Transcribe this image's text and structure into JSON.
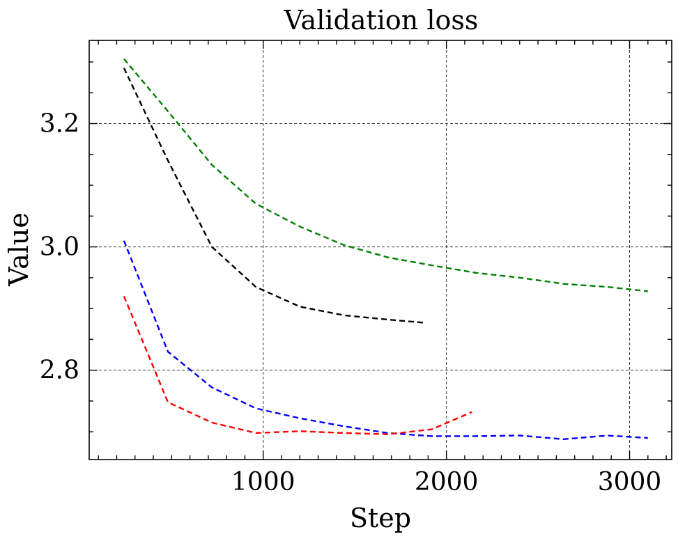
{
  "chart_data": {
    "type": "line",
    "title": "Validation loss",
    "xlabel": "Step",
    "ylabel": "Value",
    "xlim": [
      50,
      3230
    ],
    "ylim": [
      2.655,
      3.335
    ],
    "xticks": [
      1000,
      2000,
      3000
    ],
    "xtick_labels": [
      "1000",
      "2000",
      "3000"
    ],
    "yticks": [
      2.8,
      3.0,
      3.2
    ],
    "ytick_labels": [
      "2.8",
      "3.0",
      "3.2"
    ],
    "grid": true,
    "grid_style": "dashed",
    "series": [
      {
        "color": "#008000",
        "x": [
          240,
          480,
          720,
          960,
          1200,
          1440,
          1680,
          1920,
          2160,
          2400,
          2640,
          2880,
          3100
        ],
        "y": [
          3.305,
          3.22,
          3.133,
          3.07,
          3.033,
          3.003,
          2.983,
          2.97,
          2.958,
          2.95,
          2.94,
          2.935,
          2.928
        ]
      },
      {
        "color": "#000000",
        "x": [
          240,
          480,
          720,
          960,
          1200,
          1440,
          1680,
          1880
        ],
        "y": [
          3.29,
          3.14,
          3.0,
          2.935,
          2.903,
          2.889,
          2.882,
          2.877
        ]
      },
      {
        "color": "#0000ff",
        "x": [
          240,
          480,
          720,
          960,
          1200,
          1440,
          1680,
          1920,
          2160,
          2400,
          2640,
          2880,
          3100
        ],
        "y": [
          3.01,
          2.83,
          2.772,
          2.738,
          2.722,
          2.709,
          2.698,
          2.693,
          2.693,
          2.694,
          2.688,
          2.694,
          2.69
        ]
      },
      {
        "color": "#ff0000",
        "x": [
          240,
          480,
          720,
          960,
          1200,
          1440,
          1680,
          1920,
          2140
        ],
        "y": [
          2.92,
          2.748,
          2.715,
          2.698,
          2.701,
          2.698,
          2.696,
          2.704,
          2.732
        ]
      }
    ]
  }
}
